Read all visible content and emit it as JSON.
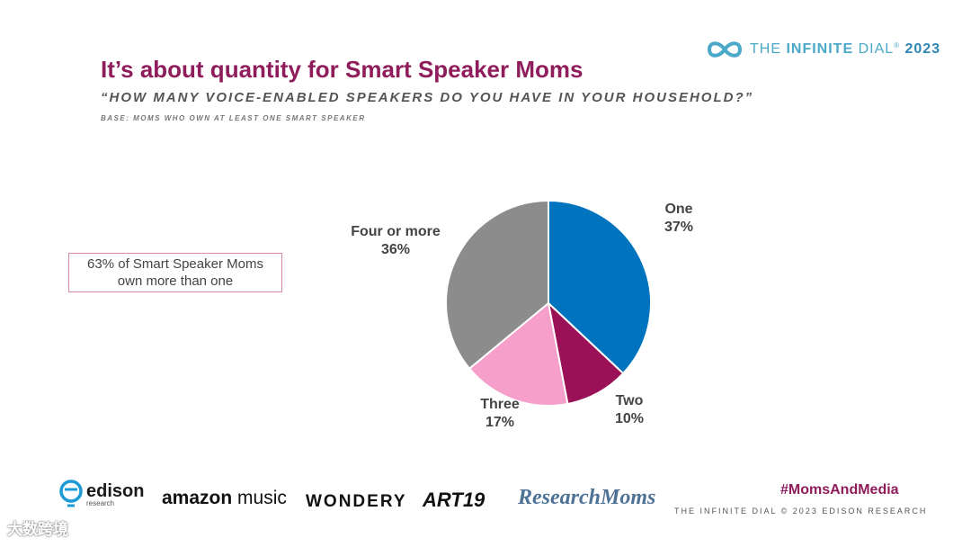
{
  "brand": {
    "prefix": "THE ",
    "bold": "INFINITE",
    "mid": " DIAL",
    "tm": "®",
    "year": "2023",
    "icon": "infinity-icon",
    "color": "#4aa8c9"
  },
  "header": {
    "title": "It’s about quantity for Smart Speaker Moms",
    "subtitle": "“HOW MANY VOICE-ENABLED SPEAKERS DO YOU HAVE IN YOUR HOUSEHOLD?”",
    "base": "BASE: MOMS WHO OWN AT LEAST ONE SMART SPEAKER"
  },
  "callout": {
    "line1": "63% of Smart Speaker Moms",
    "line2": "own more than one"
  },
  "chart_data": {
    "type": "pie",
    "title": "",
    "categories": [
      "One",
      "Two",
      "Three",
      "Four or more"
    ],
    "values": [
      37,
      10,
      17,
      36
    ],
    "labels": [
      "37%",
      "10%",
      "17%",
      "36%"
    ],
    "colors": [
      "#0073bf",
      "#9b1157",
      "#f59fca",
      "#8c8c8c"
    ],
    "legend": "none",
    "start": "top, clockwise"
  },
  "footer": {
    "edison": "edison",
    "edison_sub": "research",
    "amazon_bold": "amazon",
    "amazon_rest": "music",
    "wondery": "WONDERY",
    "art19": "ART19",
    "researchmoms": "ResearchMoms",
    "hashtag": "#MomsAndMedia",
    "text": "THE INFINITE DIAL   © 2023 EDISON RESEARCH",
    "watermark": "大数跨境"
  }
}
